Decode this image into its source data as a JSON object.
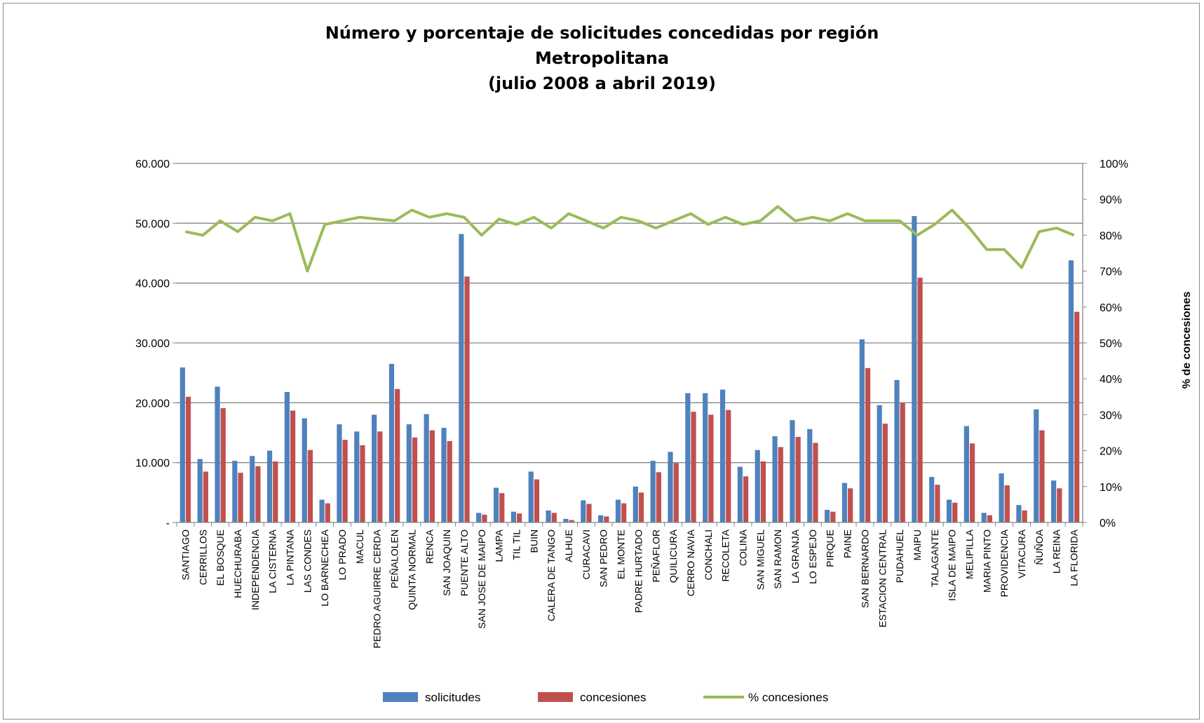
{
  "chart_data": {
    "type": "bar",
    "title": [
      "Número y porcentaje de solicitudes concedidas por región",
      "Metropolitana",
      "(julio 2008 a abril 2019)"
    ],
    "y2label": "% de concesiones",
    "ylim": [
      0,
      60000
    ],
    "y2lim": [
      0,
      1
    ],
    "y_ticks": [
      "-",
      "10.000",
      "20.000",
      "30.000",
      "40.000",
      "50.000",
      "60.000"
    ],
    "y2_ticks": [
      "0%",
      "10%",
      "20%",
      "30%",
      "40%",
      "50%",
      "60%",
      "70%",
      "80%",
      "90%",
      "100%"
    ],
    "grid": true,
    "legend_position": "bottom",
    "categories": [
      "SANTIAGO",
      "CERRILLOS",
      "EL BOSQUE",
      "HUECHURABA",
      "INDEPENDENCIA",
      "LA CISTERNA",
      "LA PINTANA",
      "LAS CONDES",
      "LO BARNECHEA",
      "LO PRADO",
      "MACUL",
      "PEDRO AGUIRRE CERDA",
      "PEÑALOLEN",
      "QUINTA NORMAL",
      "RENCA",
      "SAN JOAQUIN",
      "PUENTE ALTO",
      "SAN JOSE DE MAIPO",
      "LAMPA",
      "TIL TIL",
      "BUIN",
      "CALERA DE TANGO",
      "ALHUE",
      "CURACAVI",
      "SAN PEDRO",
      "EL MONTE",
      "PADRE HURTADO",
      "PEÑAFLOR",
      "QUILICURA",
      "CERRO NAVIA",
      "CONCHALI",
      "RECOLETA",
      "COLINA",
      "SAN MIGUEL",
      "SAN RAMON",
      "LA GRANJA",
      "LO ESPEJO",
      "PIRQUE",
      "PAINE",
      "SAN BERNARDO",
      "ESTACION CENTRAL",
      "PUDAHUEL",
      "MAIPU",
      "TALAGANTE",
      "ISLA DE MAIPO",
      "MELIPILLA",
      "MARIA PINTO",
      "PROVIDENCIA",
      "VITACURA",
      "ÑUÑOA",
      "LA REINA",
      "LA FLORIDA"
    ],
    "series": [
      {
        "name": "solicitudes",
        "type": "bar",
        "color": "#4f81bd",
        "values": [
          25900,
          10600,
          22700,
          10300,
          11100,
          12000,
          21800,
          17400,
          3800,
          16400,
          15200,
          18000,
          26500,
          16400,
          18100,
          15800,
          48200,
          1600,
          5800,
          1800,
          8500,
          2000,
          600,
          3700,
          1200,
          3800,
          6000,
          10300,
          11800,
          21600,
          21600,
          22200,
          9300,
          12100,
          14400,
          17100,
          15600,
          2100,
          6600,
          30600,
          19600,
          23800,
          51200,
          7600,
          3800,
          16100,
          1600,
          8200,
          2900,
          18900,
          7000,
          43800
        ]
      },
      {
        "name": "concesiones",
        "type": "bar",
        "color": "#c0504d",
        "values": [
          21000,
          8500,
          19100,
          8300,
          9400,
          10200,
          18700,
          12100,
          3200,
          13800,
          12900,
          15200,
          22300,
          14200,
          15400,
          13600,
          41100,
          1300,
          4900,
          1500,
          7200,
          1600,
          400,
          3100,
          1000,
          3200,
          5000,
          8400,
          9900,
          18500,
          18000,
          18800,
          7700,
          10200,
          12600,
          14300,
          13300,
          1800,
          5700,
          25800,
          16500,
          20000,
          40900,
          6300,
          3300,
          13200,
          1200,
          6200,
          2000,
          15400,
          5700,
          35200
        ]
      },
      {
        "name": "% concesiones",
        "type": "line",
        "axis": "right",
        "color": "#9bbb59",
        "values": [
          0.81,
          0.8,
          0.84,
          0.81,
          0.85,
          0.84,
          0.86,
          0.7,
          0.83,
          0.84,
          0.85,
          0.845,
          0.84,
          0.87,
          0.85,
          0.86,
          0.85,
          0.8,
          0.845,
          0.83,
          0.85,
          0.82,
          0.86,
          0.84,
          0.82,
          0.85,
          0.84,
          0.82,
          0.84,
          0.86,
          0.83,
          0.85,
          0.83,
          0.84,
          0.88,
          0.84,
          0.85,
          0.84,
          0.86,
          0.84,
          0.84,
          0.84,
          0.8,
          0.83,
          0.87,
          0.82,
          0.76,
          0.76,
          0.71,
          0.81,
          0.82,
          0.8
        ]
      }
    ]
  }
}
